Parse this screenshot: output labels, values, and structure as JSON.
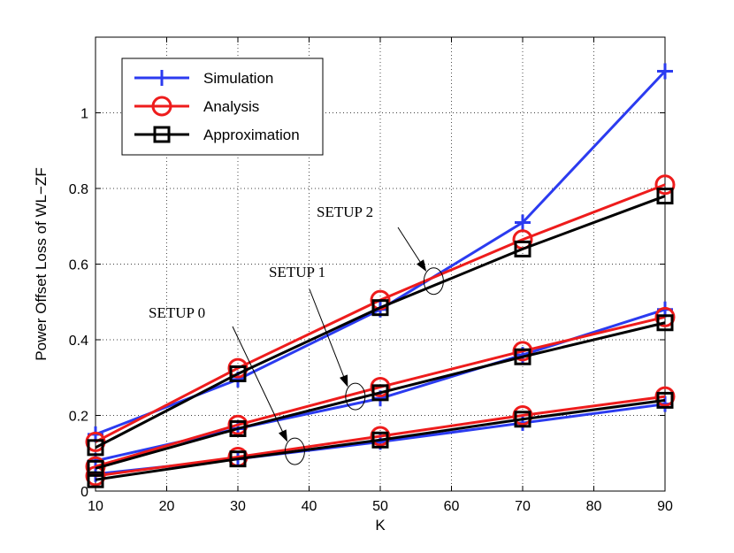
{
  "chart_data": {
    "type": "line",
    "xlabel": "K",
    "ylabel": "Power Offset Loss of WL−ZF",
    "xlim": [
      10,
      90
    ],
    "ylim": [
      0,
      1.2
    ],
    "xticks": [
      10,
      20,
      30,
      40,
      50,
      60,
      70,
      80,
      90
    ],
    "yticks": [
      0,
      0.2,
      0.4,
      0.6,
      0.8,
      1
    ],
    "ytick_labels": [
      "0",
      "0.2",
      "0.4",
      "0.6",
      "0.8",
      "1"
    ],
    "grid": true,
    "legend_position": "top-left",
    "x": [
      10,
      30,
      50,
      70,
      90
    ],
    "series": [
      {
        "name": "Simulation",
        "color": "#2b3bf0",
        "marker": "plus",
        "setup": "SETUP 0",
        "values": [
          0.045,
          0.085,
          0.13,
          0.18,
          0.23
        ]
      },
      {
        "name": "Analysis",
        "color": "#ee1c1c",
        "marker": "circle",
        "setup": "SETUP 0",
        "values": [
          0.04,
          0.09,
          0.145,
          0.2,
          0.25
        ]
      },
      {
        "name": "Approximation",
        "color": "#000000",
        "marker": "square",
        "setup": "SETUP 0",
        "values": [
          0.03,
          0.085,
          0.135,
          0.19,
          0.24
        ]
      },
      {
        "name": "Simulation",
        "color": "#2b3bf0",
        "marker": "plus",
        "setup": "SETUP 1",
        "values": [
          0.08,
          0.165,
          0.245,
          0.36,
          0.48
        ]
      },
      {
        "name": "Analysis",
        "color": "#ee1c1c",
        "marker": "circle",
        "setup": "SETUP 1",
        "values": [
          0.065,
          0.175,
          0.275,
          0.37,
          0.46
        ]
      },
      {
        "name": "Approximation",
        "color": "#000000",
        "marker": "square",
        "setup": "SETUP 1",
        "values": [
          0.06,
          0.165,
          0.26,
          0.355,
          0.445
        ]
      },
      {
        "name": "Simulation",
        "color": "#2b3bf0",
        "marker": "plus",
        "setup": "SETUP 2",
        "values": [
          0.15,
          0.295,
          0.48,
          0.71,
          1.11
        ]
      },
      {
        "name": "Analysis",
        "color": "#ee1c1c",
        "marker": "circle",
        "setup": "SETUP 2",
        "values": [
          0.13,
          0.325,
          0.505,
          0.665,
          0.81
        ]
      },
      {
        "name": "Approximation",
        "color": "#000000",
        "marker": "square",
        "setup": "SETUP 2",
        "values": [
          0.115,
          0.31,
          0.485,
          0.64,
          0.78
        ]
      }
    ],
    "legend": [
      {
        "label": "Simulation",
        "color": "#2b3bf0",
        "marker": "plus"
      },
      {
        "label": "Analysis",
        "color": "#ee1c1c",
        "marker": "circle"
      },
      {
        "label": "Approximation",
        "color": "#000000",
        "marker": "square"
      }
    ],
    "annotations": [
      {
        "text": "SETUP 0",
        "target": {
          "x": 38,
          "y": 0.105
        }
      },
      {
        "text": "SETUP 1",
        "target": {
          "x": 46.5,
          "y": 0.25
        }
      },
      {
        "text": "SETUP 2",
        "target": {
          "x": 57.5,
          "y": 0.555
        }
      }
    ]
  }
}
